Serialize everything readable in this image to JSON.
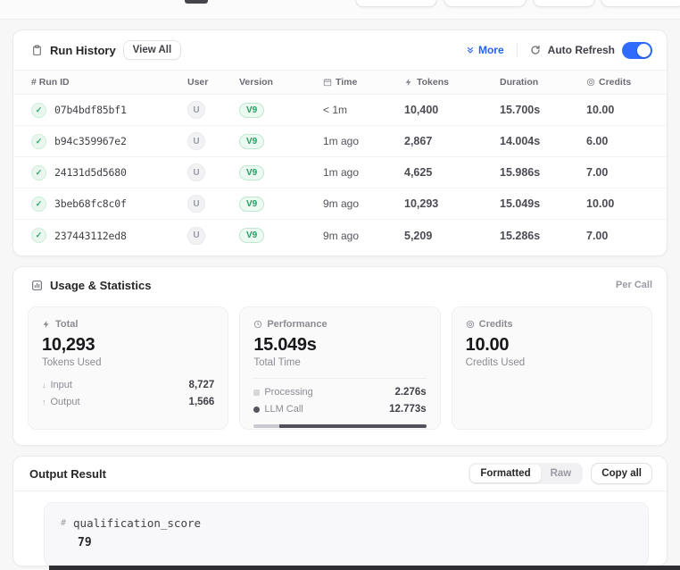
{
  "run_history": {
    "title": "Run History",
    "view_all_label": "View All",
    "more_label": "More",
    "auto_refresh_label": "Auto Refresh",
    "auto_refresh_on": true,
    "columns": {
      "id": "# Run ID",
      "user": "User",
      "version": "Version",
      "time": "Time",
      "tokens": "Tokens",
      "duration": "Duration",
      "credits": "Credits"
    },
    "rows": [
      {
        "id": "07b4bdf85bf1",
        "user": "U",
        "version": "V9",
        "time": "< 1m",
        "tokens": "10,400",
        "duration": "15.700s",
        "credits": "10.00"
      },
      {
        "id": "b94c359967e2",
        "user": "U",
        "version": "V9",
        "time": "1m ago",
        "tokens": "2,867",
        "duration": "14.004s",
        "credits": "6.00"
      },
      {
        "id": "24131d5d5680",
        "user": "U",
        "version": "V9",
        "time": "1m ago",
        "tokens": "4,625",
        "duration": "15.986s",
        "credits": "7.00"
      },
      {
        "id": "3beb68fc8c0f",
        "user": "U",
        "version": "V9",
        "time": "9m ago",
        "tokens": "10,293",
        "duration": "15.049s",
        "credits": "10.00"
      },
      {
        "id": "237443112ed8",
        "user": "U",
        "version": "V9",
        "time": "9m ago",
        "tokens": "5,209",
        "duration": "15.286s",
        "credits": "7.00"
      }
    ],
    "check_glyph": "✓"
  },
  "usage": {
    "title": "Usage & Statistics",
    "per_call_label": "Per Call",
    "total": {
      "label": "Total",
      "value": "10,293",
      "subtitle": "Tokens Used",
      "input_label": "Input",
      "input_value": "8,727",
      "output_label": "Output",
      "output_value": "1,566",
      "input_arrow": "↓",
      "output_arrow": "↑"
    },
    "performance": {
      "label": "Performance",
      "value": "15.049s",
      "subtitle": "Total Time",
      "processing_label": "Processing",
      "processing_value": "2.276s",
      "llm_label": "LLM Call",
      "llm_value": "12.773s",
      "processing_pct": 15,
      "llm_pct": 85
    },
    "credits": {
      "label": "Credits",
      "value": "10.00",
      "subtitle": "Credits Used"
    }
  },
  "output": {
    "title": "Output Result",
    "formatted_label": "Formatted",
    "raw_label": "Raw",
    "copy_all_label": "Copy all",
    "hash_glyph": "#",
    "key": "qualification_score",
    "value": "79"
  },
  "colors": {
    "accent_blue": "#2563eb",
    "toggle_blue": "#2f6bff",
    "success_green": "#2fa56b",
    "bar_dark": "#52525b",
    "bar_light": "#c9c9cf",
    "page_bg": "#f7f7f8"
  }
}
